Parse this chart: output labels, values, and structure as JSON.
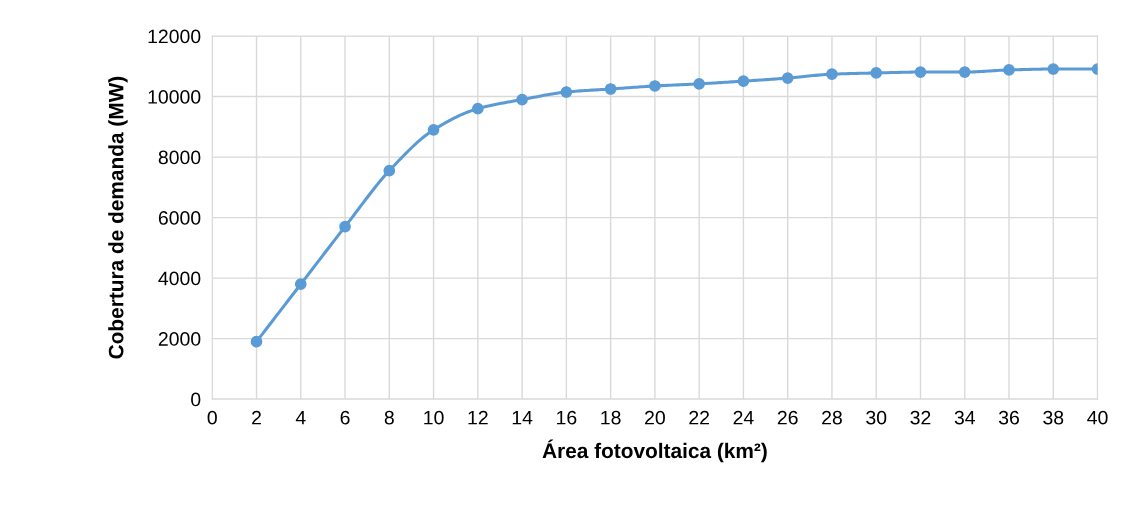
{
  "chart_data": {
    "type": "line",
    "xlabel": "Área fotovoltaica (km²)",
    "ylabel": "Cobertura de demanda (MW)",
    "x": [
      2,
      4,
      6,
      8,
      10,
      12,
      14,
      16,
      18,
      20,
      22,
      24,
      26,
      28,
      30,
      32,
      34,
      36,
      38,
      40
    ],
    "series": [
      {
        "color": "#5b9bd5",
        "values": [
          1900,
          3800,
          5700,
          7550,
          8900,
          9600,
          9900,
          10150,
          10250,
          10350,
          10420,
          10510,
          10610,
          10740,
          10780,
          10810,
          10810,
          10880,
          10910,
          10910
        ]
      }
    ],
    "xlim": [
      0,
      40
    ],
    "xticks": [
      0,
      2,
      4,
      6,
      8,
      10,
      12,
      14,
      16,
      18,
      20,
      22,
      24,
      26,
      28,
      30,
      32,
      34,
      36,
      38,
      40
    ],
    "ylim": [
      0,
      12000
    ],
    "yticks": [
      0,
      2000,
      4000,
      6000,
      8000,
      10000,
      12000
    ],
    "grid": true,
    "marker": "circle",
    "line_style": "solid"
  }
}
